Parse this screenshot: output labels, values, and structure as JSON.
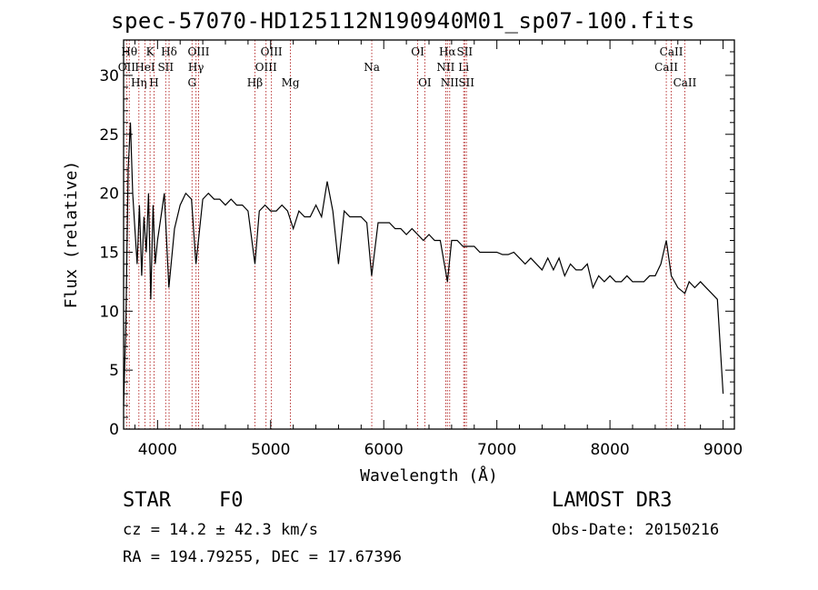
{
  "chart_data": {
    "type": "line",
    "title": "spec-57070-HD125112N190940M01_sp07-100.fits",
    "xlabel": "Wavelength (Å)",
    "ylabel": "Flux (relative)",
    "xlim": [
      3700,
      9100
    ],
    "ylim": [
      0,
      33
    ],
    "x_ticks": [
      4000,
      5000,
      6000,
      7000,
      8000,
      9000
    ],
    "y_ticks": [
      0,
      5,
      10,
      15,
      20,
      25,
      30
    ],
    "series": [
      {
        "name": "flux",
        "x": [
          3700,
          3720,
          3740,
          3760,
          3780,
          3800,
          3820,
          3840,
          3860,
          3880,
          3900,
          3920,
          3940,
          3960,
          3980,
          4000,
          4030,
          4060,
          4100,
          4150,
          4200,
          4250,
          4300,
          4340,
          4400,
          4450,
          4500,
          4550,
          4600,
          4650,
          4700,
          4750,
          4800,
          4861,
          4900,
          4950,
          5000,
          5050,
          5100,
          5150,
          5200,
          5250,
          5300,
          5350,
          5400,
          5450,
          5500,
          5550,
          5600,
          5650,
          5700,
          5750,
          5800,
          5850,
          5893,
          5950,
          6000,
          6050,
          6100,
          6150,
          6200,
          6250,
          6300,
          6350,
          6400,
          6450,
          6500,
          6563,
          6600,
          6650,
          6700,
          6750,
          6800,
          6850,
          6900,
          6950,
          7000,
          7050,
          7100,
          7150,
          7200,
          7250,
          7300,
          7350,
          7400,
          7450,
          7500,
          7550,
          7600,
          7650,
          7700,
          7750,
          7800,
          7850,
          7900,
          7950,
          8000,
          8050,
          8100,
          8150,
          8200,
          8250,
          8300,
          8350,
          8400,
          8450,
          8498,
          8542,
          8600,
          8662,
          8700,
          8750,
          8800,
          8850,
          8900,
          8950,
          9000
        ],
        "y": [
          2,
          9,
          22,
          26,
          20,
          17,
          14,
          19,
          13,
          18,
          15,
          20,
          11,
          19,
          14,
          16,
          18,
          20,
          12,
          17,
          19,
          20,
          19.5,
          14,
          19.5,
          20,
          19.5,
          19.5,
          19,
          19.5,
          19,
          19,
          18.5,
          14,
          18.5,
          19,
          18.5,
          18.5,
          19,
          18.5,
          17,
          18.5,
          18,
          18,
          19,
          18,
          21,
          18.5,
          14,
          18.5,
          18,
          18,
          18,
          17.5,
          13,
          17.5,
          17.5,
          17.5,
          17,
          17,
          16.5,
          17,
          16.5,
          16,
          16.5,
          16,
          16,
          12.5,
          16,
          16,
          15.5,
          15.5,
          15.5,
          15,
          15,
          15,
          15,
          14.8,
          14.8,
          15,
          14.5,
          14,
          14.5,
          14,
          13.5,
          14.5,
          13.5,
          14.5,
          13,
          14,
          13.5,
          13.5,
          14,
          12,
          13,
          12.5,
          13,
          12.5,
          12.5,
          13,
          12.5,
          12.5,
          12.5,
          13,
          13,
          14,
          16,
          13,
          12,
          11.5,
          12.5,
          12,
          12.5,
          12,
          11.5,
          11,
          3
        ]
      }
    ],
    "line_marks": [
      {
        "label": "OII",
        "x": 3727,
        "row": 2
      },
      {
        "label": "Hθ",
        "x": 3750,
        "row": 1
      },
      {
        "label": "Hη",
        "x": 3835,
        "row": 3
      },
      {
        "label": "HeI",
        "x": 3889,
        "row": 2
      },
      {
        "label": "K",
        "x": 3934,
        "row": 1
      },
      {
        "label": "H",
        "x": 3969,
        "row": 3
      },
      {
        "label": "SII",
        "x": 4072,
        "row": 2
      },
      {
        "label": "Hδ",
        "x": 4102,
        "row": 1
      },
      {
        "label": "G",
        "x": 4305,
        "row": 3
      },
      {
        "label": "Hγ",
        "x": 4340,
        "row": 2
      },
      {
        "label": "OIII",
        "x": 4363,
        "row": 1
      },
      {
        "label": "Hβ",
        "x": 4861,
        "row": 3
      },
      {
        "label": "OIII",
        "x": 4959,
        "row": 2
      },
      {
        "label": "OIII",
        "x": 5007,
        "row": 1
      },
      {
        "label": "Mg",
        "x": 5175,
        "row": 3
      },
      {
        "label": "Na",
        "x": 5894,
        "row": 2
      },
      {
        "label": "OI",
        "x": 6300,
        "row": 1
      },
      {
        "label": "OI",
        "x": 6363,
        "row": 3
      },
      {
        "label": "NII",
        "x": 6548,
        "row": 2
      },
      {
        "label": "Hα",
        "x": 6563,
        "row": 1
      },
      {
        "label": "NII",
        "x": 6583,
        "row": 3
      },
      {
        "label": "Li",
        "x": 6707,
        "row": 2
      },
      {
        "label": "SII",
        "x": 6716,
        "row": 1
      },
      {
        "label": "SII",
        "x": 6731,
        "row": 3
      },
      {
        "label": "CaII",
        "x": 8498,
        "row": 2
      },
      {
        "label": "CaII",
        "x": 8542,
        "row": 1
      },
      {
        "label": "CaII",
        "x": 8662,
        "row": 3
      }
    ]
  },
  "info": {
    "object_class": "STAR",
    "subclass": "F0",
    "survey": "LAMOST DR3",
    "redshift": "cz = 14.2 ± 42.3 km/s",
    "obs_date": "Obs-Date: 20150216",
    "coords": "RA = 194.79255, DEC =  17.67396"
  },
  "colors": {
    "spectrum": "#000000",
    "line_marker": "#b22222",
    "axis": "#000000"
  }
}
